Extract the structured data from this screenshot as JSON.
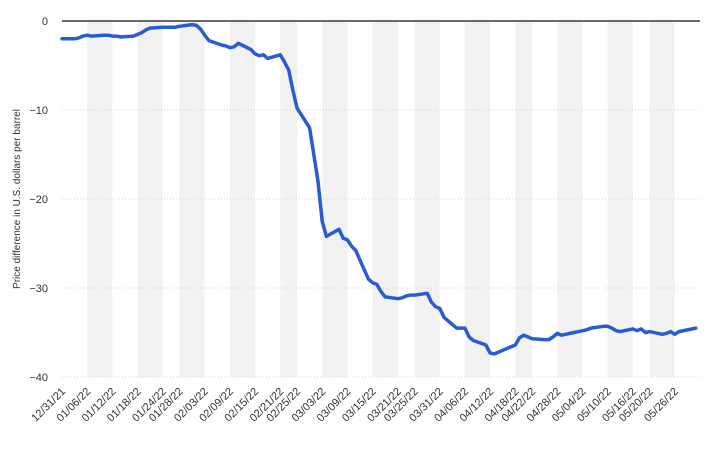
{
  "colors": {
    "line": "#2a5bd7",
    "band": "#f2f2f2",
    "grid": "#d3d3d3",
    "zero_line": "#111111"
  },
  "chart_data": {
    "type": "line",
    "title": "",
    "xlabel": "",
    "ylabel": "Price difference in U.S. dollars per barrel",
    "ylim": [
      -40,
      0
    ],
    "yticks": [
      0,
      -10,
      -20,
      -30,
      -40
    ],
    "xlim": [
      "2021-12-31",
      "2022-06-01"
    ],
    "xtick_labels": [
      "12/31/21",
      "01/06/22",
      "01/12/22",
      "01/18/22",
      "01/24/22",
      "01/28/22",
      "02/03/22",
      "02/09/22",
      "02/15/22",
      "02/21/22",
      "02/25/22",
      "03/03/22",
      "03/09/22",
      "03/15/22",
      "03/21/22",
      "03/25/22",
      "03/31/22",
      "04/06/22",
      "04/12/22",
      "04/18/22",
      "04/22/22",
      "04/28/22",
      "05/04/22",
      "05/10/22",
      "05/16/22",
      "05/20/22",
      "05/26/22"
    ],
    "grid": true,
    "series": [
      {
        "x": [
          "2021-12-31",
          "2022-01-03",
          "2022-01-04",
          "2022-01-05",
          "2022-01-06",
          "2022-01-07",
          "2022-01-10",
          "2022-01-11",
          "2022-01-12",
          "2022-01-13",
          "2022-01-14",
          "2022-01-17",
          "2022-01-18",
          "2022-01-19",
          "2022-01-20",
          "2022-01-21",
          "2022-01-24",
          "2022-01-25",
          "2022-01-26",
          "2022-01-27",
          "2022-01-28",
          "2022-01-31",
          "2022-02-01",
          "2022-02-02",
          "2022-02-03",
          "2022-02-04",
          "2022-02-07",
          "2022-02-08",
          "2022-02-09",
          "2022-02-10",
          "2022-02-11",
          "2022-02-14",
          "2022-02-15",
          "2022-02-16",
          "2022-02-17",
          "2022-02-18",
          "2022-02-21",
          "2022-02-22",
          "2022-02-23",
          "2022-02-24",
          "2022-02-25",
          "2022-02-28",
          "2022-03-01",
          "2022-03-02",
          "2022-03-03",
          "2022-03-04",
          "2022-03-07",
          "2022-03-08",
          "2022-03-09",
          "2022-03-10",
          "2022-03-11",
          "2022-03-14",
          "2022-03-15",
          "2022-03-16",
          "2022-03-17",
          "2022-03-18",
          "2022-03-21",
          "2022-03-22",
          "2022-03-23",
          "2022-03-24",
          "2022-03-25",
          "2022-03-28",
          "2022-03-29",
          "2022-03-30",
          "2022-03-31",
          "2022-04-01",
          "2022-04-04",
          "2022-04-05",
          "2022-04-06",
          "2022-04-07",
          "2022-04-08",
          "2022-04-11",
          "2022-04-12",
          "2022-04-13",
          "2022-04-14",
          "2022-04-18",
          "2022-04-19",
          "2022-04-20",
          "2022-04-21",
          "2022-04-22",
          "2022-04-25",
          "2022-04-26",
          "2022-04-27",
          "2022-04-28",
          "2022-04-29",
          "2022-05-02",
          "2022-05-03",
          "2022-05-04",
          "2022-05-05",
          "2022-05-06",
          "2022-05-09",
          "2022-05-10",
          "2022-05-11",
          "2022-05-12",
          "2022-05-13",
          "2022-05-16",
          "2022-05-17",
          "2022-05-18",
          "2022-05-19",
          "2022-05-20",
          "2022-05-23",
          "2022-05-24",
          "2022-05-25",
          "2022-05-26",
          "2022-05-27",
          "2022-05-31"
        ],
        "values": [
          -2.0,
          -2.0,
          -1.9,
          -1.7,
          -1.6,
          -1.7,
          -1.6,
          -1.6,
          -1.7,
          -1.7,
          -1.8,
          -1.7,
          -1.5,
          -1.3,
          -1.0,
          -0.8,
          -0.7,
          -0.7,
          -0.7,
          -0.7,
          -0.6,
          -0.4,
          -0.5,
          -0.9,
          -1.6,
          -2.2,
          -2.7,
          -2.8,
          -3.0,
          -2.9,
          -2.5,
          -3.2,
          -3.7,
          -3.9,
          -3.8,
          -4.2,
          -3.8,
          -4.6,
          -5.5,
          -7.8,
          -9.8,
          -12.0,
          -15.0,
          -18.0,
          -22.5,
          -24.2,
          -23.4,
          -24.4,
          -24.6,
          -25.3,
          -25.8,
          -29.0,
          -29.4,
          -29.6,
          -30.4,
          -31.0,
          -31.2,
          -31.1,
          -30.9,
          -30.8,
          -30.8,
          -30.6,
          -31.6,
          -32.1,
          -32.3,
          -33.3,
          -34.5,
          -34.5,
          -34.5,
          -35.5,
          -35.9,
          -36.4,
          -37.3,
          -37.4,
          -37.2,
          -36.4,
          -35.6,
          -35.3,
          -35.5,
          -35.7,
          -35.8,
          -35.8,
          -35.5,
          -35.1,
          -35.3,
          -35.0,
          -34.9,
          -34.8,
          -34.7,
          -34.5,
          -34.3,
          -34.3,
          -34.5,
          -34.8,
          -34.9,
          -34.6,
          -34.8,
          -34.6,
          -35.0,
          -34.9,
          -35.2,
          -35.1,
          -34.9,
          -35.2,
          -34.9,
          -34.5
        ]
      }
    ]
  }
}
